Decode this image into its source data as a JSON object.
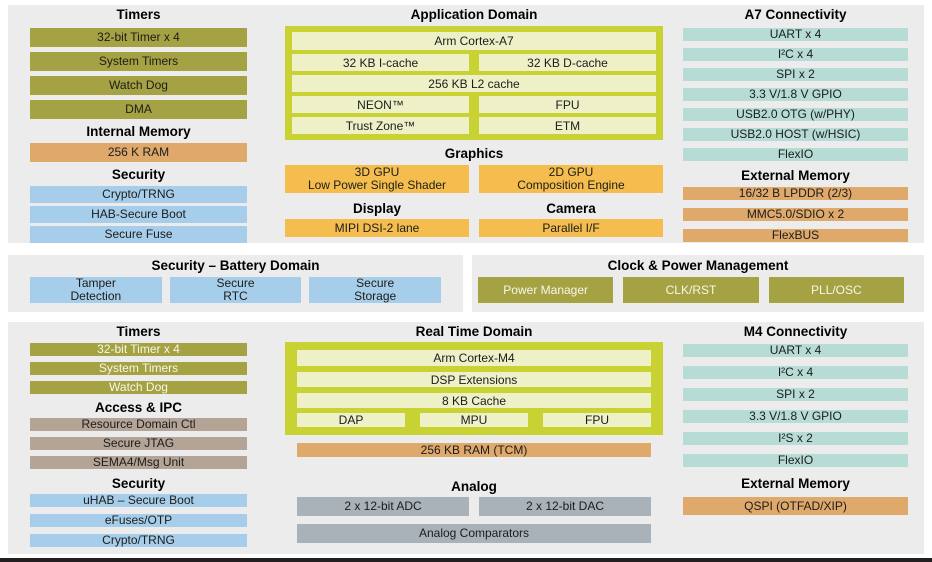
{
  "colors": {
    "panel_bg": "#ececec",
    "olive": "#a4a243",
    "teal": "#b6dcd5",
    "blue": "#a6cde9",
    "tan": "#dfa96c",
    "amber": "#f4bd4e",
    "taupe": "#b3a495",
    "gray": "#a9b2b9",
    "container_green": "#c9d233",
    "cell_pale": "#eef0c8",
    "bottom_rule": "#231f20"
  },
  "top": {
    "left": {
      "sections": [
        {
          "heading": "Timers",
          "items": [
            "32-bit Timer x 4",
            "System Timers",
            "Watch Dog",
            "DMA"
          ]
        },
        {
          "heading": "Internal Memory",
          "items": [
            "256 K RAM"
          ]
        },
        {
          "heading": "Security",
          "items": [
            "Crypto/TRNG",
            "HAB-Secure Boot",
            "Secure Fuse"
          ]
        }
      ]
    },
    "center": {
      "heading": "Application Domain",
      "cpu": {
        "row1": "Arm Cortex-A7",
        "row2a": "32 KB I-cache",
        "row2b": "32 KB D-cache",
        "row3": "256 KB L2 cache",
        "row4a": "NEON™",
        "row4b": "FPU",
        "row5a": "Trust Zone™",
        "row5b": "ETM"
      },
      "graphics": {
        "heading": "Graphics",
        "gpu3d": "3D GPU\nLow Power Single Shader",
        "gpu2d": "2D GPU\nComposition Engine"
      },
      "display": {
        "heading": "Display",
        "item": "MIPI DSI-2 lane"
      },
      "camera": {
        "heading": "Camera",
        "item": "Parallel I/F"
      }
    },
    "right": {
      "connectivity": {
        "heading": "A7 Connectivity",
        "items": [
          "UART x 4",
          "I²C x 4",
          "SPI x 2",
          "3.3 V/1.8 V GPIO",
          "USB2.0 OTG (w/PHY)",
          "USB2.0 HOST (w/HSIC)",
          "FlexIO"
        ]
      },
      "memory": {
        "heading": "External Memory",
        "items": [
          "16/32 B LPDDR (2/3)",
          "MMC5.0/SDIO x 2",
          "FlexBUS"
        ]
      }
    }
  },
  "middle": {
    "battery": {
      "heading": "Security – Battery Domain",
      "items": [
        "Tamper\nDetection",
        "Secure\nRTC",
        "Secure\nStorage"
      ]
    },
    "clock": {
      "heading": "Clock & Power Management",
      "items": [
        "Power Manager",
        "CLK/RST",
        "PLL/OSC"
      ]
    }
  },
  "bottom": {
    "left": {
      "sections": [
        {
          "heading": "Timers",
          "items": [
            "32-bit Timer x 4",
            "System Timers",
            "Watch Dog"
          ]
        },
        {
          "heading": "Access & IPC",
          "items": [
            "Resource Domain Ctl",
            "Secure JTAG",
            "SEMA4/Msg Unit"
          ]
        },
        {
          "heading": "Security",
          "items": [
            "uHAB – Secure Boot",
            "eFuses/OTP",
            "Crypto/TRNG"
          ]
        }
      ]
    },
    "center": {
      "heading": "Real Time Domain",
      "cpu": {
        "row1": "Arm Cortex-M4",
        "row2": "DSP Extensions",
        "row3": "8 KB Cache",
        "row4a": "DAP",
        "row4b": "MPU",
        "row4c": "FPU"
      },
      "ram": "256 KB RAM (TCM)",
      "analog": {
        "heading": "Analog",
        "adc": "2 x 12-bit ADC",
        "dac": "2 x 12-bit DAC",
        "comparators": "Analog Comparators"
      }
    },
    "right": {
      "connectivity": {
        "heading": "M4 Connectivity",
        "items": [
          "UART x 4",
          "I²C x 4",
          "SPI x 2",
          "3.3 V/1.8 V GPIO",
          "I²S x 2",
          "FlexIO"
        ]
      },
      "memory": {
        "heading": "External Memory",
        "items": [
          "QSPI (OTFAD/XIP)"
        ]
      }
    }
  }
}
